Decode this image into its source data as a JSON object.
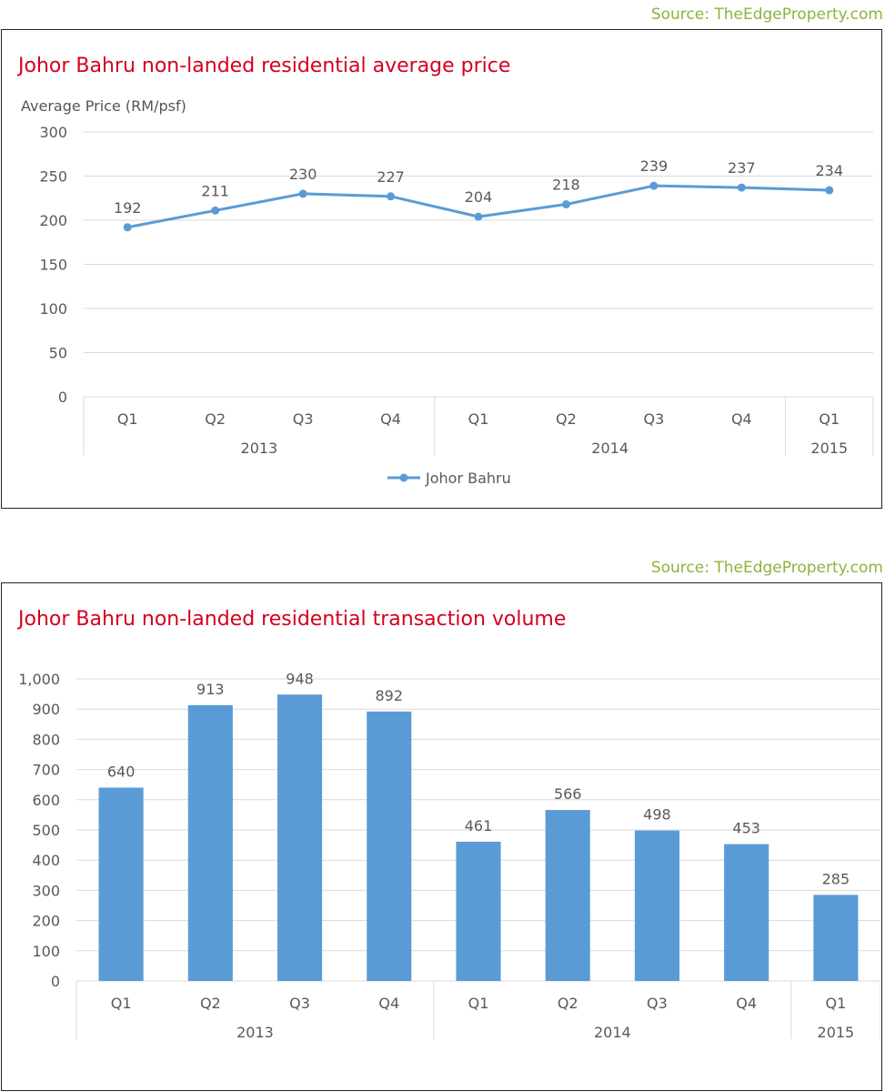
{
  "source_top": "Source: TheEdgeProperty.com",
  "source_bottom": "Source: TheEdgeProperty.com",
  "colors": {
    "series": "#5b9bd5",
    "title": "#d4001e",
    "source": "#8cb43c",
    "grid": "#d9d9d9",
    "text": "#595959"
  },
  "chart_data": [
    {
      "type": "line",
      "title": "Johor Bahru non-landed residential average price",
      "ylabel": "Average Price (RM/psf)",
      "xlabel": "",
      "ylim": [
        0,
        300
      ],
      "yticks": [
        "0",
        "50",
        "100",
        "150",
        "200",
        "250",
        "300"
      ],
      "categories": [
        "Q1",
        "Q2",
        "Q3",
        "Q4",
        "Q1",
        "Q2",
        "Q3",
        "Q4",
        "Q1"
      ],
      "groups": [
        {
          "label": "2013",
          "count": 4
        },
        {
          "label": "2014",
          "count": 4
        },
        {
          "label": "2015",
          "count": 1
        }
      ],
      "series": [
        {
          "name": "Johor Bahru",
          "values": [
            192,
            211,
            230,
            227,
            204,
            218,
            239,
            237,
            234
          ]
        }
      ],
      "legend": "bottom",
      "grid": true
    },
    {
      "type": "bar",
      "title": "Johor Bahru non-landed residential transaction volume",
      "ylabel": "",
      "xlabel": "",
      "ylim": [
        0,
        1000
      ],
      "yticks": [
        "0",
        "100",
        "200",
        "300",
        "400",
        "500",
        "600",
        "700",
        "800",
        "900",
        "1,000"
      ],
      "categories": [
        "Q1",
        "Q2",
        "Q3",
        "Q4",
        "Q1",
        "Q2",
        "Q3",
        "Q4",
        "Q1"
      ],
      "groups": [
        {
          "label": "2013",
          "count": 4
        },
        {
          "label": "2014",
          "count": 4
        },
        {
          "label": "2015",
          "count": 1
        }
      ],
      "values": [
        640,
        913,
        948,
        892,
        461,
        566,
        498,
        453,
        285
      ],
      "grid": true
    }
  ]
}
